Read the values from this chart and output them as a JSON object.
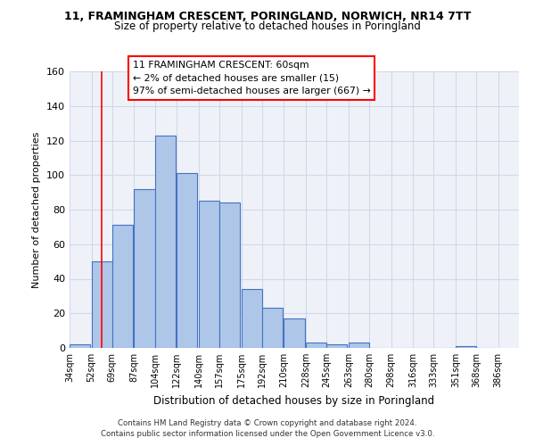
{
  "title_line1": "11, FRAMINGHAM CRESCENT, PORINGLAND, NORWICH, NR14 7TT",
  "title_line2": "Size of property relative to detached houses in Poringland",
  "xlabel": "Distribution of detached houses by size in Poringland",
  "ylabel": "Number of detached properties",
  "bar_left_edges": [
    34,
    52,
    69,
    87,
    104,
    122,
    140,
    157,
    175,
    192,
    210,
    228,
    245,
    263,
    280,
    298,
    316,
    333,
    351,
    368
  ],
  "bar_heights": [
    2,
    50,
    71,
    92,
    123,
    101,
    85,
    84,
    34,
    23,
    17,
    3,
    2,
    3,
    0,
    0,
    0,
    0,
    1,
    0
  ],
  "bin_width": 17,
  "bar_color": "#aec6e8",
  "bar_edge_color": "#4472c4",
  "ylim": [
    0,
    160
  ],
  "yticks": [
    0,
    20,
    40,
    60,
    80,
    100,
    120,
    140,
    160
  ],
  "xtick_labels": [
    "34sqm",
    "52sqm",
    "69sqm",
    "87sqm",
    "104sqm",
    "122sqm",
    "140sqm",
    "157sqm",
    "175sqm",
    "192sqm",
    "210sqm",
    "228sqm",
    "245sqm",
    "263sqm",
    "280sqm",
    "298sqm",
    "316sqm",
    "333sqm",
    "351sqm",
    "368sqm",
    "386sqm"
  ],
  "xtick_positions": [
    34,
    52,
    69,
    87,
    104,
    122,
    140,
    157,
    175,
    192,
    210,
    228,
    245,
    263,
    280,
    298,
    316,
    333,
    351,
    368,
    386
  ],
  "red_line_x": 60,
  "annotation_box_text": "11 FRAMINGHAM CRESCENT: 60sqm\n← 2% of detached houses are smaller (15)\n97% of semi-detached houses are larger (667) →",
  "footer_line1": "Contains HM Land Registry data © Crown copyright and database right 2024.",
  "footer_line2": "Contains public sector information licensed under the Open Government Licence v3.0.",
  "grid_color": "#d0d8e8",
  "bg_color": "#eef2f8"
}
